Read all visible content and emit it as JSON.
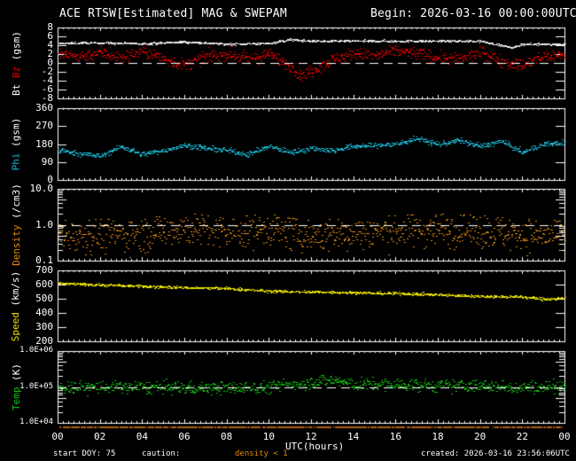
{
  "header": {
    "title": "ACE RTSW[Estimated] MAG & SWEPAM",
    "begin": "Begin: 2026-03-16 00:00:00UTC"
  },
  "footer": {
    "start_doy": "start DOY:  75",
    "caution": "caution:",
    "density_note": "density < 1",
    "created": "created: 2026-03-16 23:56:06UTC",
    "xlabel": "UTC(hours)"
  },
  "colors": {
    "background": "#000000",
    "axis": "#ffffff",
    "bt": "#e8e8e8",
    "bz": "#e00000",
    "phi": "#1ab6d0",
    "density": "#e08a10",
    "speed": "#e8e000",
    "temp": "#10c010",
    "caution_bar": "#b06010"
  },
  "chart_data": [
    {
      "type": "scatter",
      "title": "Bt / Bz",
      "ylabel": "Bt Bz (gsm)",
      "ylabel_parts": [
        {
          "text": "Bt",
          "color": "#ffffff"
        },
        {
          "text": " Bz",
          "color": "#e00000"
        },
        {
          "text": " (gsm)",
          "color": "#ffffff"
        }
      ],
      "scale": "linear",
      "ylim": [
        -8,
        8
      ],
      "yticks": [
        "8",
        "6",
        "4",
        "2",
        "0",
        "-2",
        "-4",
        "-6",
        "-8"
      ],
      "ytick_values": [
        8,
        6,
        4,
        2,
        0,
        -2,
        -4,
        -6,
        -8
      ],
      "reference_line": 0,
      "series": [
        {
          "name": "Bt",
          "color": "#e8e8e8",
          "x": [
            0,
            2,
            4,
            6,
            8,
            10,
            11,
            12,
            14,
            16,
            18,
            20,
            21.5,
            22,
            24
          ],
          "y": [
            4.5,
            4.6,
            4.4,
            4.8,
            4.3,
            4.5,
            5.3,
            5.0,
            5.0,
            5.0,
            5.0,
            5.0,
            3.5,
            4.3,
            4.3
          ],
          "spread": 0.25
        },
        {
          "name": "Bz",
          "color": "#e00000",
          "x": [
            0,
            1,
            2,
            3,
            4,
            5,
            6,
            7,
            8,
            9,
            10,
            11,
            11.5,
            12,
            13,
            14,
            15,
            16,
            17,
            18,
            19,
            20,
            21,
            22,
            23,
            24
          ],
          "y": [
            2,
            1.5,
            2.5,
            1.2,
            2.8,
            1.0,
            -0.5,
            1.5,
            2.0,
            1.0,
            2.0,
            -0.5,
            -3.0,
            -1.5,
            0.8,
            2.2,
            1.6,
            2.8,
            2.2,
            1.2,
            0.8,
            2.5,
            0.5,
            -0.5,
            1.5,
            2.0
          ],
          "spread": 1.4
        }
      ]
    },
    {
      "type": "scatter",
      "title": "Phi",
      "ylabel": "Phi (gsm)",
      "ylabel_parts": [
        {
          "text": "Phi",
          "color": "#1ab6d0"
        },
        {
          "text": " (gsm)",
          "color": "#ffffff"
        }
      ],
      "scale": "linear",
      "ylim": [
        0,
        360
      ],
      "yticks": [
        "360",
        "270",
        "180",
        "90",
        "0"
      ],
      "ytick_values": [
        360,
        270,
        180,
        90,
        0
      ],
      "series": [
        {
          "name": "Phi",
          "color": "#1ab6d0",
          "x": [
            0,
            1,
            2,
            3,
            4,
            5,
            6,
            7,
            8,
            9,
            10,
            11,
            12,
            13,
            14,
            15,
            16,
            17,
            18,
            19,
            20,
            21,
            22,
            23,
            24
          ],
          "y": [
            150,
            135,
            120,
            170,
            130,
            150,
            175,
            160,
            150,
            130,
            170,
            140,
            160,
            150,
            170,
            175,
            180,
            210,
            180,
            200,
            170,
            195,
            140,
            180,
            190
          ],
          "spread": 14
        }
      ]
    },
    {
      "type": "scatter",
      "title": "Density",
      "ylabel": "Density (/cm3)",
      "ylabel_parts": [
        {
          "text": "Density",
          "color": "#e08a10"
        },
        {
          "text": " (/cm3)",
          "color": "#ffffff"
        }
      ],
      "scale": "log",
      "ylim": [
        0.1,
        10.0
      ],
      "yticks": [
        "10.0",
        "1.0",
        "0.1"
      ],
      "ytick_values": [
        10,
        1,
        0.1
      ],
      "reference_line": 1.0,
      "series": [
        {
          "name": "Density",
          "color": "#e08a10",
          "x": [
            0,
            4,
            6,
            8,
            10,
            11,
            12,
            14,
            16,
            18,
            20,
            22,
            24
          ],
          "y": [
            0.55,
            0.55,
            0.85,
            0.6,
            0.8,
            0.6,
            0.5,
            0.6,
            0.7,
            0.8,
            0.7,
            0.55,
            0.5
          ],
          "spread": 0.5
        }
      ]
    },
    {
      "type": "scatter",
      "title": "Speed",
      "ylabel": "Speed (km/s)",
      "ylabel_parts": [
        {
          "text": "Speed",
          "color": "#e8e000"
        },
        {
          "text": " (km/s)",
          "color": "#ffffff"
        }
      ],
      "scale": "linear",
      "ylim": [
        200,
        700
      ],
      "yticks": [
        "700",
        "600",
        "500",
        "400",
        "300",
        "200"
      ],
      "ytick_values": [
        700,
        600,
        500,
        400,
        300,
        200
      ],
      "series": [
        {
          "name": "Speed",
          "color": "#e8e000",
          "x": [
            0,
            2,
            4,
            6,
            8,
            10,
            12,
            14,
            16,
            18,
            20,
            22,
            23,
            24
          ],
          "y": [
            610,
            600,
            590,
            580,
            575,
            555,
            550,
            545,
            540,
            530,
            520,
            515,
            500,
            505
          ],
          "spread": 10
        }
      ]
    },
    {
      "type": "scatter",
      "title": "Temp",
      "ylabel": "Temp (K)",
      "ylabel_parts": [
        {
          "text": "Temp",
          "color": "#10c010"
        },
        {
          "text": " (K)",
          "color": "#ffffff"
        }
      ],
      "scale": "log",
      "ylim": [
        10000,
        1000000
      ],
      "yticks": [
        "1.0E+06",
        "1.0E+05",
        "1.0E+04"
      ],
      "ytick_values": [
        1000000,
        100000,
        10000
      ],
      "reference_line": 100000,
      "series": [
        {
          "name": "Temp",
          "color": "#10c010",
          "x": [
            0,
            4,
            8,
            10,
            12,
            13,
            14,
            16,
            18,
            20,
            22,
            24
          ],
          "y": [
            100000,
            100000,
            95000,
            100000,
            140000,
            160000,
            120000,
            120000,
            110000,
            110000,
            100000,
            110000
          ],
          "spread": 0.18
        }
      ]
    }
  ],
  "x_axis": {
    "label": "UTC(hours)",
    "range": [
      0,
      24
    ],
    "ticks": [
      "00",
      "02",
      "04",
      "06",
      "08",
      "10",
      "12",
      "14",
      "16",
      "18",
      "20",
      "22",
      "00"
    ]
  }
}
